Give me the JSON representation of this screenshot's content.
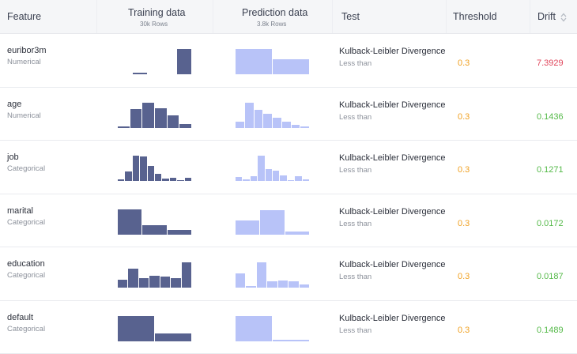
{
  "header": {
    "feature": "Feature",
    "training": "Training data",
    "training_rows": "30k Rows",
    "prediction": "Prediction data",
    "prediction_rows": "3.8k Rows",
    "test": "Test",
    "threshold": "Threshold",
    "drift": "Drift"
  },
  "colors": {
    "training_bar": "#58628f",
    "prediction_bar": "#b8c3f8",
    "threshold_text": "#f0a020",
    "drift_high": "#e0455b",
    "drift_ok": "#54b948"
  },
  "rows": [
    {
      "feature": "euribor3m",
      "type": "Numerical",
      "test": "Kulback-Leibler Divergence",
      "condition": "Less than",
      "threshold": "0.3",
      "drift": "7.3929",
      "drift_status": "high",
      "training_hist": [
        0,
        0.07,
        0,
        0,
        1
      ],
      "prediction_hist": [
        1,
        0.6
      ]
    },
    {
      "feature": "age",
      "type": "Numerical",
      "test": "Kulback-Leibler Divergence",
      "condition": "Less than",
      "threshold": "0.3",
      "drift": "0.1436",
      "drift_status": "ok",
      "training_hist": [
        0.06,
        0.75,
        1,
        0.78,
        0.5,
        0.14
      ],
      "prediction_hist": [
        0.25,
        1,
        0.7,
        0.55,
        0.38,
        0.22,
        0.1,
        0.06
      ]
    },
    {
      "feature": "job",
      "type": "Categorical",
      "test": "Kulback-Leibler Divergence",
      "condition": "Less than",
      "threshold": "0.3",
      "drift": "0.1271",
      "drift_status": "ok",
      "training_hist": [
        0.06,
        0.38,
        1,
        0.96,
        0.6,
        0.28,
        0.1,
        0.14,
        0.04,
        0.14
      ],
      "prediction_hist": [
        0.15,
        0.06,
        0.18,
        1,
        0.48,
        0.42,
        0.22,
        0.04,
        0.18,
        0.06
      ]
    },
    {
      "feature": "marital",
      "type": "Categorical",
      "test": "Kulback-Leibler Divergence",
      "condition": "Less than",
      "threshold": "0.3",
      "drift": "0.0172",
      "drift_status": "ok",
      "training_hist": [
        1,
        0.36,
        0.16
      ],
      "prediction_hist": [
        0.56,
        0.96,
        0.12
      ]
    },
    {
      "feature": "education",
      "type": "Categorical",
      "test": "Kulback-Leibler Divergence",
      "condition": "Less than",
      "threshold": "0.3",
      "drift": "0.0187",
      "drift_status": "ok",
      "training_hist": [
        0.3,
        0.76,
        0.36,
        0.48,
        0.44,
        0.36,
        1
      ],
      "prediction_hist": [
        0.56,
        0.06,
        1,
        0.26,
        0.28,
        0.24,
        0.12
      ]
    },
    {
      "feature": "default",
      "type": "Categorical",
      "test": "Kulback-Leibler Divergence",
      "condition": "Less than",
      "threshold": "0.3",
      "drift": "0.1489",
      "drift_status": "ok",
      "training_hist": [
        1,
        0.3
      ],
      "prediction_hist": [
        1,
        0.04
      ]
    }
  ]
}
